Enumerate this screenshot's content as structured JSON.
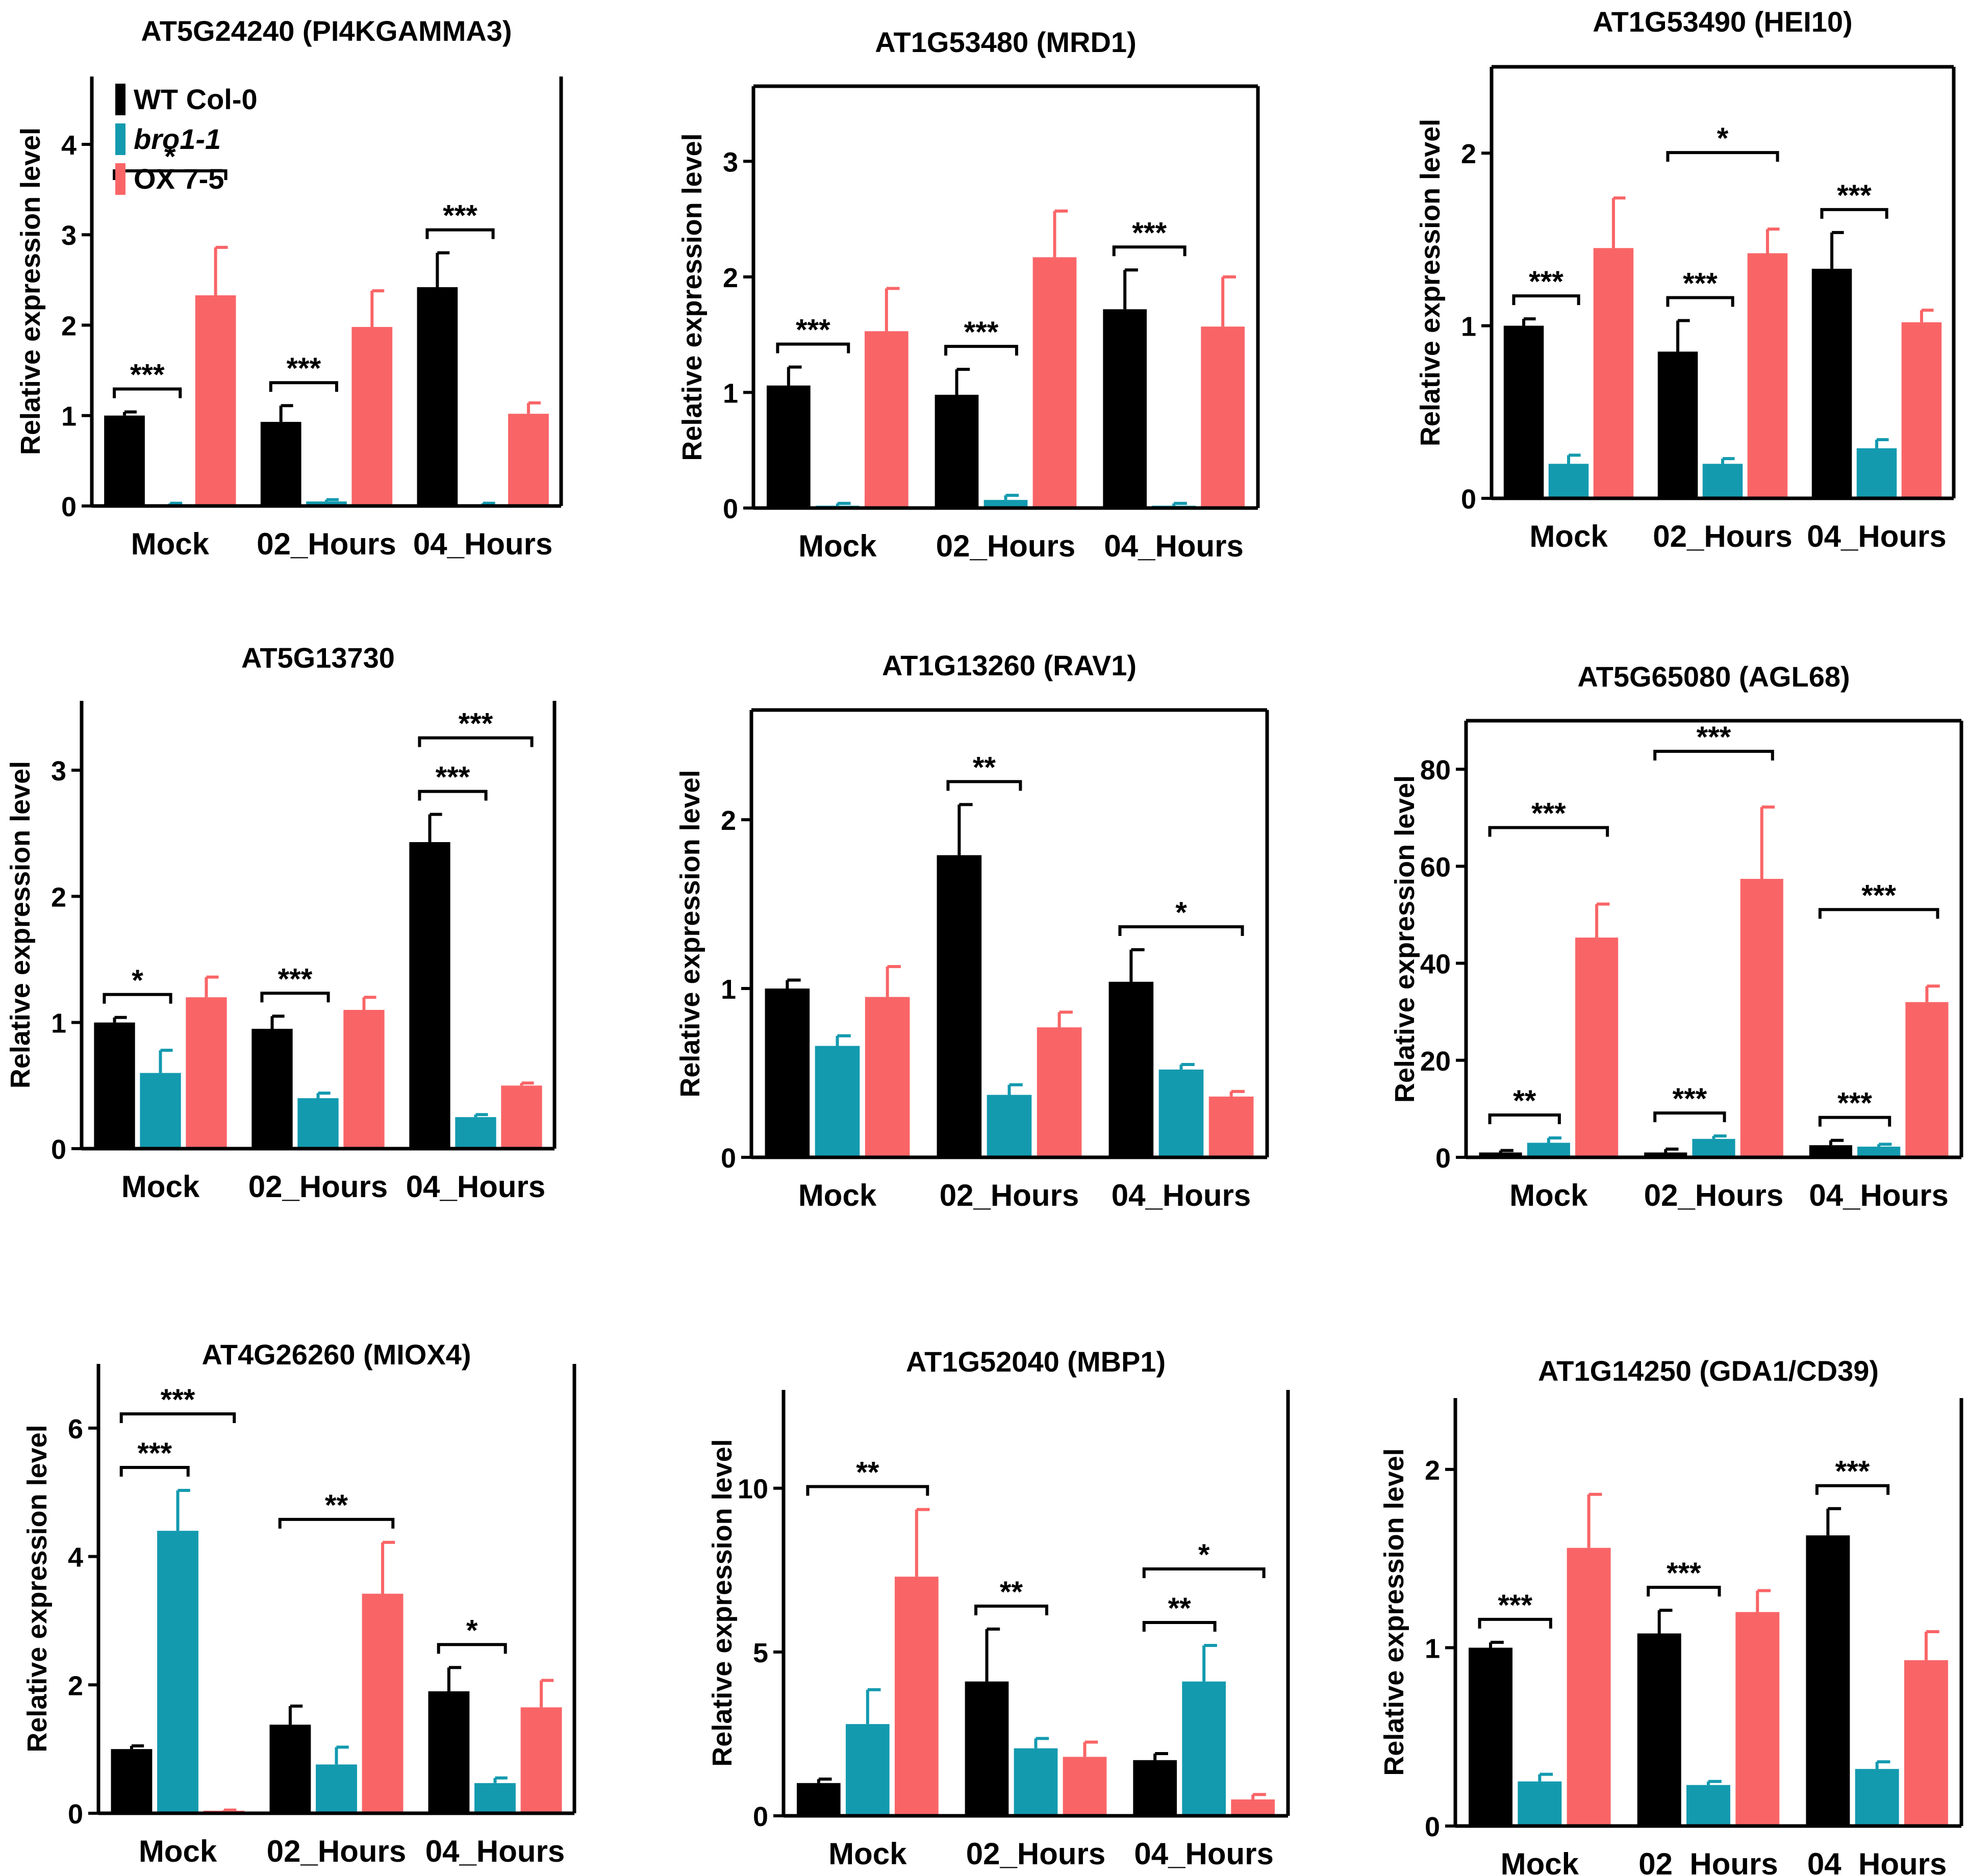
{
  "figure": {
    "legend": [
      {
        "label": "WT Col-0",
        "color": "#000000",
        "italic": false
      },
      {
        "label": "bro1-1",
        "color": "#139aaf",
        "italic": true
      },
      {
        "label": "OX 7-5",
        "color": "#f96567",
        "italic": false
      }
    ],
    "group_labels": [
      "Mock",
      "02_Hours",
      "04_Hours"
    ],
    "y_axis_label": "Relative expression level"
  },
  "chart_data": [
    {
      "type": "bar",
      "title": "AT5G24240 (PI4KGAMMA3)",
      "ylabel": "Relative expression level",
      "categories": [
        "Mock",
        "02_Hours",
        "04_Hours"
      ],
      "ylim": [
        0,
        4.75
      ],
      "yticks": [
        0,
        1,
        2,
        3,
        4
      ],
      "series": [
        {
          "name": "WT Col-0",
          "values": [
            1.0,
            0.93,
            2.42
          ],
          "errors": [
            0.04,
            0.18,
            0.38
          ]
        },
        {
          "name": "bro1-1",
          "values": [
            0.02,
            0.05,
            0.02
          ],
          "errors": [
            0.01,
            0.02,
            0.01
          ]
        },
        {
          "name": "OX 7-5",
          "values": [
            2.33,
            1.98,
            1.02
          ],
          "errors": [
            0.53,
            0.4,
            0.12
          ]
        }
      ],
      "significance": [
        {
          "group": 0,
          "from": 0,
          "to": 1,
          "label": "***",
          "tier": 0
        },
        {
          "group": 0,
          "from": 0,
          "to": 2,
          "label": "*",
          "tier": 1
        },
        {
          "group": 1,
          "from": 0,
          "to": 1,
          "label": "***",
          "tier": 0
        },
        {
          "group": 2,
          "from": 0,
          "to": 1,
          "label": "***",
          "tier": 0
        }
      ]
    },
    {
      "type": "bar",
      "title": "AT1G53480 (MRD1)",
      "ylabel": "Relative expression level",
      "categories": [
        "Mock",
        "02_Hours",
        "04_Hours"
      ],
      "ylim": [
        0,
        3.65
      ],
      "yticks": [
        0,
        1,
        2,
        3
      ],
      "series": [
        {
          "name": "WT Col-0",
          "values": [
            1.06,
            0.98,
            1.72
          ],
          "errors": [
            0.16,
            0.22,
            0.34
          ]
        },
        {
          "name": "bro1-1",
          "values": [
            0.02,
            0.07,
            0.02
          ],
          "errors": [
            0.02,
            0.04,
            0.02
          ]
        },
        {
          "name": "OX 7-5",
          "values": [
            1.53,
            2.17,
            1.57
          ],
          "errors": [
            0.37,
            0.4,
            0.43
          ]
        }
      ],
      "significance": [
        {
          "group": 0,
          "from": 0,
          "to": 1,
          "label": "***",
          "tier": 0
        },
        {
          "group": 1,
          "from": 0,
          "to": 1,
          "label": "***",
          "tier": 0
        },
        {
          "group": 2,
          "from": 0,
          "to": 1,
          "label": "***",
          "tier": 0
        }
      ]
    },
    {
      "type": "bar",
      "title": "AT1G53490 (HEI10)",
      "ylabel": "Relative expression level",
      "categories": [
        "Mock",
        "02_Hours",
        "04_Hours"
      ],
      "ylim": [
        0,
        2.5
      ],
      "yticks": [
        0,
        1,
        2
      ],
      "series": [
        {
          "name": "WT Col-0",
          "values": [
            1.0,
            0.85,
            1.33
          ],
          "errors": [
            0.04,
            0.18,
            0.21
          ]
        },
        {
          "name": "bro1-1",
          "values": [
            0.2,
            0.2,
            0.29
          ],
          "errors": [
            0.05,
            0.03,
            0.05
          ]
        },
        {
          "name": "OX 7-5",
          "values": [
            1.45,
            1.42,
            1.02
          ],
          "errors": [
            0.29,
            0.14,
            0.07
          ]
        }
      ],
      "significance": [
        {
          "group": 0,
          "from": 0,
          "to": 1,
          "label": "***",
          "tier": 0
        },
        {
          "group": 1,
          "from": 0,
          "to": 1,
          "label": "***",
          "tier": 0
        },
        {
          "group": 1,
          "from": 0,
          "to": 2,
          "label": "*",
          "tier": 1
        },
        {
          "group": 2,
          "from": 0,
          "to": 1,
          "label": "***",
          "tier": 0
        }
      ]
    },
    {
      "type": "bar",
      "title": "AT5G13730",
      "ylabel": "Relative expression level",
      "categories": [
        "Mock",
        "02_Hours",
        "04_Hours"
      ],
      "ylim": [
        0,
        3.55
      ],
      "yticks": [
        0,
        1,
        2,
        3
      ],
      "series": [
        {
          "name": "WT Col-0",
          "values": [
            1.0,
            0.95,
            2.43
          ],
          "errors": [
            0.04,
            0.1,
            0.22
          ]
        },
        {
          "name": "bro1-1",
          "values": [
            0.6,
            0.4,
            0.25
          ],
          "errors": [
            0.18,
            0.04,
            0.02
          ]
        },
        {
          "name": "OX 7-5",
          "values": [
            1.2,
            1.1,
            0.5
          ],
          "errors": [
            0.16,
            0.1,
            0.02
          ]
        }
      ],
      "significance": [
        {
          "group": 0,
          "from": 0,
          "to": 1,
          "label": "*",
          "tier": 0
        },
        {
          "group": 1,
          "from": 0,
          "to": 1,
          "label": "***",
          "tier": 0
        },
        {
          "group": 2,
          "from": 0,
          "to": 1,
          "label": "***",
          "tier": 0
        },
        {
          "group": 2,
          "from": 0,
          "to": 2,
          "label": "***",
          "tier": 1
        }
      ]
    },
    {
      "type": "bar",
      "title": "AT1G13260 (RAV1)",
      "ylabel": "Relative expression level",
      "categories": [
        "Mock",
        "02_Hours",
        "04_Hours"
      ],
      "ylim": [
        0,
        2.65
      ],
      "yticks": [
        0,
        1,
        2
      ],
      "series": [
        {
          "name": "WT Col-0",
          "values": [
            1.0,
            1.79,
            1.04
          ],
          "errors": [
            0.05,
            0.3,
            0.19
          ]
        },
        {
          "name": "bro1-1",
          "values": [
            0.66,
            0.37,
            0.52
          ],
          "errors": [
            0.06,
            0.06,
            0.03
          ]
        },
        {
          "name": "OX 7-5",
          "values": [
            0.95,
            0.77,
            0.36
          ],
          "errors": [
            0.18,
            0.09,
            0.03
          ]
        }
      ],
      "significance": [
        {
          "group": 1,
          "from": 0,
          "to": 1,
          "label": "**",
          "tier": 0
        },
        {
          "group": 2,
          "from": 0,
          "to": 2,
          "label": "*",
          "tier": 0
        }
      ]
    },
    {
      "type": "bar",
      "title": "AT5G65080 (AGL68)",
      "ylabel": "Relative expression level",
      "categories": [
        "Mock",
        "02_Hours",
        "04_Hours"
      ],
      "ylim": [
        0,
        90
      ],
      "yticks": [
        0,
        20,
        40,
        60,
        80
      ],
      "series": [
        {
          "name": "WT Col-0",
          "values": [
            1.0,
            1.0,
            2.5
          ],
          "errors": [
            0.4,
            0.7,
            1.0
          ]
        },
        {
          "name": "bro1-1",
          "values": [
            3.0,
            3.8,
            2.2
          ],
          "errors": [
            1.0,
            0.6,
            0.5
          ]
        },
        {
          "name": "OX 7-5",
          "values": [
            45.3,
            57.4,
            32.0
          ],
          "errors": [
            6.9,
            14.8,
            3.3
          ]
        }
      ],
      "significance": [
        {
          "group": 0,
          "from": 0,
          "to": 1,
          "label": "**",
          "tier": 0
        },
        {
          "group": 0,
          "from": 0,
          "to": 2,
          "label": "***",
          "tier": 1
        },
        {
          "group": 1,
          "from": 0,
          "to": 1,
          "label": "***",
          "tier": 0
        },
        {
          "group": 1,
          "from": 0,
          "to": 2,
          "label": "***",
          "tier": 1
        },
        {
          "group": 2,
          "from": 0,
          "to": 1,
          "label": "***",
          "tier": 0
        },
        {
          "group": 2,
          "from": 0,
          "to": 2,
          "label": "***",
          "tier": 1
        }
      ]
    },
    {
      "type": "bar",
      "title": "AT4G26260 (MIOX4)",
      "ylabel": "Relative expression level",
      "categories": [
        "Mock",
        "02_Hours",
        "04_Hours"
      ],
      "ylim": [
        0,
        7.0
      ],
      "yticks": [
        0,
        2,
        4,
        6
      ],
      "series": [
        {
          "name": "WT Col-0",
          "values": [
            1.0,
            1.38,
            1.9
          ],
          "errors": [
            0.05,
            0.29,
            0.37
          ]
        },
        {
          "name": "bro1-1",
          "values": [
            4.4,
            0.76,
            0.47
          ],
          "errors": [
            0.63,
            0.27,
            0.08
          ]
        },
        {
          "name": "OX 7-5",
          "values": [
            0.04,
            3.42,
            1.65
          ],
          "errors": [
            0.01,
            0.8,
            0.42
          ]
        }
      ],
      "significance": [
        {
          "group": 0,
          "from": 0,
          "to": 1,
          "label": "***",
          "tier": 0
        },
        {
          "group": 0,
          "from": 0,
          "to": 2,
          "label": "***",
          "tier": 1
        },
        {
          "group": 1,
          "from": 0,
          "to": 2,
          "label": "**",
          "tier": 0
        },
        {
          "group": 2,
          "from": 0,
          "to": 1,
          "label": "*",
          "tier": 0
        }
      ]
    },
    {
      "type": "bar",
      "title": "AT1G52040 (MBP1)",
      "ylabel": "Relative expression level",
      "categories": [
        "Mock",
        "02_Hours",
        "04_Hours"
      ],
      "ylim": [
        0,
        13.0
      ],
      "yticks": [
        0,
        5,
        10
      ],
      "series": [
        {
          "name": "WT Col-0",
          "values": [
            1.0,
            4.1,
            1.7
          ],
          "errors": [
            0.12,
            1.6,
            0.2
          ]
        },
        {
          "name": "bro1-1",
          "values": [
            2.8,
            2.06,
            4.1
          ],
          "errors": [
            1.05,
            0.3,
            1.1
          ]
        },
        {
          "name": "OX 7-5",
          "values": [
            7.3,
            1.8,
            0.5
          ],
          "errors": [
            2.05,
            0.45,
            0.15
          ]
        }
      ],
      "significance": [
        {
          "group": 0,
          "from": 0,
          "to": 2,
          "label": "**",
          "tier": 0
        },
        {
          "group": 1,
          "from": 0,
          "to": 1,
          "label": "**",
          "tier": 0
        },
        {
          "group": 2,
          "from": 0,
          "to": 1,
          "label": "**",
          "tier": 0
        },
        {
          "group": 2,
          "from": 0,
          "to": 2,
          "label": "*",
          "tier": 1
        }
      ]
    },
    {
      "type": "bar",
      "title": "AT1G14250 (GDA1/CD39)",
      "ylabel": "Relative expression level",
      "categories": [
        "Mock",
        "02_Hours",
        "04_Hours"
      ],
      "ylim": [
        0,
        2.4
      ],
      "yticks": [
        0,
        1,
        2
      ],
      "series": [
        {
          "name": "WT Col-0",
          "values": [
            1.0,
            1.08,
            1.63
          ],
          "errors": [
            0.03,
            0.13,
            0.15
          ]
        },
        {
          "name": "bro1-1",
          "values": [
            0.25,
            0.23,
            0.32
          ],
          "errors": [
            0.04,
            0.02,
            0.04
          ]
        },
        {
          "name": "OX 7-5",
          "values": [
            1.56,
            1.2,
            0.93
          ],
          "errors": [
            0.3,
            0.12,
            0.16
          ]
        }
      ],
      "significance": [
        {
          "group": 0,
          "from": 0,
          "to": 1,
          "label": "***",
          "tier": 0
        },
        {
          "group": 1,
          "from": 0,
          "to": 1,
          "label": "***",
          "tier": 0
        },
        {
          "group": 2,
          "from": 0,
          "to": 1,
          "label": "***",
          "tier": 0
        }
      ]
    }
  ]
}
